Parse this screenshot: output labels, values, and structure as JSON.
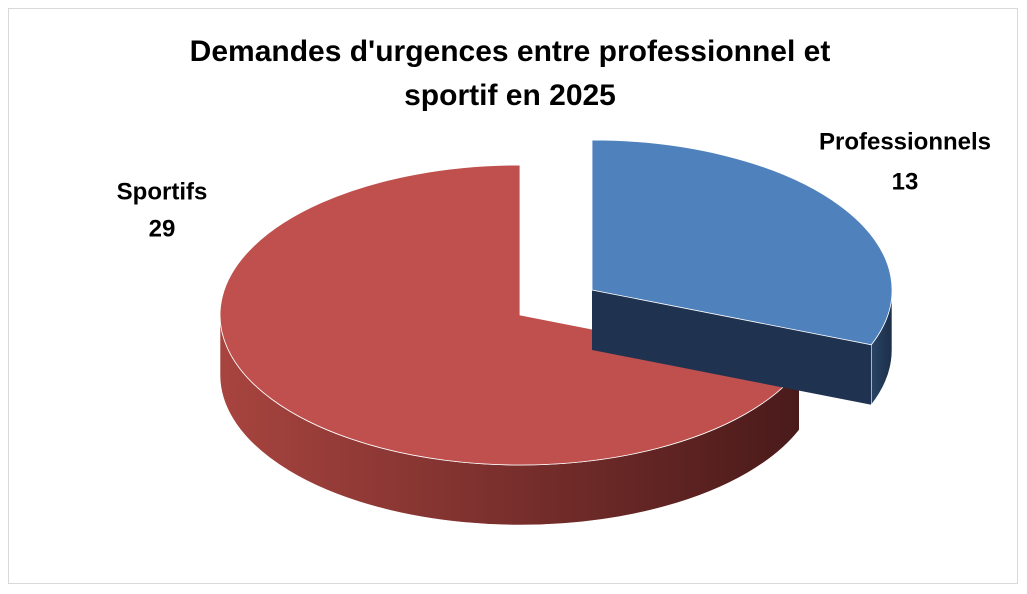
{
  "chart_data": {
    "type": "pie",
    "title": "Demandes d'urgences entre professionnel et sportif en 2025",
    "categories": [
      "Professionnels",
      "Sportifs"
    ],
    "values": [
      13,
      29
    ],
    "colors": [
      "#4f81bd",
      "#c0504d"
    ],
    "exploded": [
      true,
      false
    ]
  }
}
